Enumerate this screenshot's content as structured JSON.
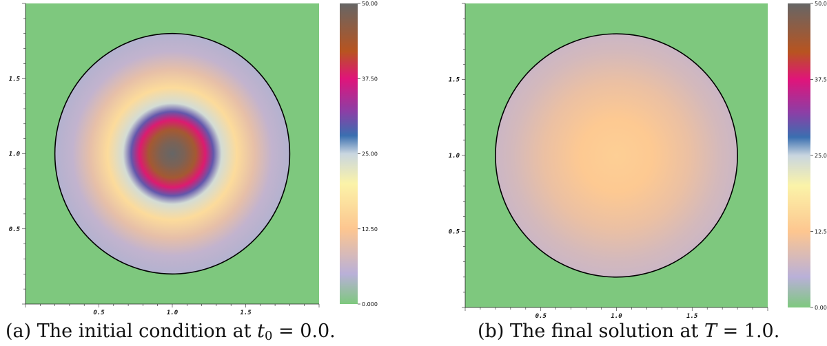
{
  "chart_data": [
    {
      "type": "heatmap",
      "id": "a",
      "caption_prefix": "(a) The initial condition at ",
      "caption_math": {
        "var": "t",
        "sub": "0",
        "rest": " = 0.0."
      },
      "x_ticks": [
        "0.5",
        "1.0",
        "1.5"
      ],
      "y_ticks": [
        "1.5",
        "1.0",
        "0.5"
      ],
      "x_tick_values": [
        0.5,
        1.0,
        1.5
      ],
      "y_tick_values": [
        1.5,
        1.0,
        0.5
      ],
      "xlim": [
        0.0,
        2.0
      ],
      "ylim": [
        0.0,
        2.0
      ],
      "domain": {
        "shape": "disk",
        "center": [
          1.0,
          1.0
        ],
        "radius": 0.8
      },
      "background_value": 0.0,
      "field": {
        "description_values": "radial profile value vs. normalized radius r/R",
        "r": [
          0.0,
          0.1,
          0.2,
          0.28,
          0.35,
          0.42,
          0.55,
          0.7,
          0.85,
          1.0
        ],
        "value": [
          50.0,
          48.0,
          44.0,
          38.0,
          30.0,
          24.0,
          16.0,
          10.0,
          6.0,
          4.5
        ]
      },
      "colorbar": {
        "min": 0.0,
        "max": 50.0,
        "tick_labels": [
          "50.00",
          "37.50",
          "25.00",
          "12.50",
          "0.000"
        ],
        "tick_values": [
          50.0,
          37.5,
          25.0,
          12.5,
          0.0
        ]
      }
    },
    {
      "type": "heatmap",
      "id": "b",
      "caption_prefix": "(b) The final solution at ",
      "caption_math": {
        "var": "T",
        "sub": "",
        "rest": " = 1.0."
      },
      "x_ticks": [
        "0.5",
        "1.0",
        "1.5"
      ],
      "y_ticks": [
        "1.5",
        "1.0",
        "0.5"
      ],
      "x_tick_values": [
        0.5,
        1.0,
        1.5
      ],
      "y_tick_values": [
        1.5,
        1.0,
        0.5
      ],
      "xlim": [
        0.0,
        2.0
      ],
      "ylim": [
        0.0,
        2.0
      ],
      "domain": {
        "shape": "disk",
        "center": [
          1.0,
          1.0
        ],
        "radius": 0.8
      },
      "background_value": 0.0,
      "field": {
        "description_values": "radial profile value vs. normalized radius r/R",
        "r": [
          0.0,
          0.3,
          0.6,
          0.85,
          1.0
        ],
        "value": [
          14.0,
          13.0,
          10.5,
          8.0,
          7.0
        ]
      },
      "colorbar": {
        "min": 0.0,
        "max": 50.0,
        "tick_labels": [
          "50.00",
          "37.50",
          "25.00",
          "12.50",
          "0.000"
        ],
        "tick_values": [
          50.0,
          37.5,
          25.0,
          12.5,
          0.0
        ]
      }
    }
  ],
  "colormap": {
    "stops": [
      {
        "v": 0.0,
        "color": "#7ec87e"
      },
      {
        "v": 5.0,
        "color": "#b9b0d8"
      },
      {
        "v": 12.5,
        "color": "#fdc690"
      },
      {
        "v": 20.0,
        "color": "#fbf3a8"
      },
      {
        "v": 25.0,
        "color": "#c9d6e0"
      },
      {
        "v": 28.0,
        "color": "#3a6fb0"
      },
      {
        "v": 32.0,
        "color": "#8b3fa6"
      },
      {
        "v": 37.5,
        "color": "#e0147a"
      },
      {
        "v": 42.0,
        "color": "#b85420"
      },
      {
        "v": 50.0,
        "color": "#666666"
      }
    ]
  }
}
